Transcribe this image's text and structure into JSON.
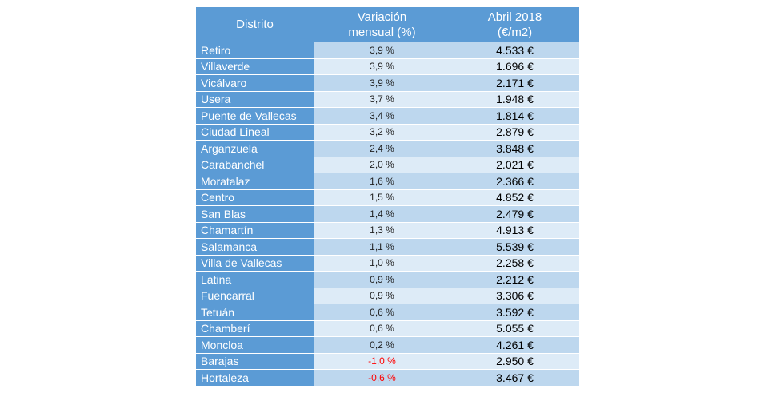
{
  "table": {
    "headers": {
      "district": "Distrito",
      "variation_line1": "Variación",
      "variation_line2": "mensual (%)",
      "price_line1": "Abril 2018",
      "price_line2": "(€/m2)"
    },
    "rows": [
      {
        "district": "Retiro",
        "variation": "3,9 %",
        "price": "4.533 €"
      },
      {
        "district": "Villaverde",
        "variation": "3,9 %",
        "price": "1.696 €"
      },
      {
        "district": "Vicálvaro",
        "variation": "3,9 %",
        "price": "2.171 €"
      },
      {
        "district": "Usera",
        "variation": "3,7 %",
        "price": "1.948 €"
      },
      {
        "district": "Puente de Vallecas",
        "variation": "3,4 %",
        "price": "1.814 €"
      },
      {
        "district": "Ciudad Lineal",
        "variation": "3,2 %",
        "price": "2.879 €"
      },
      {
        "district": "Arganzuela",
        "variation": "2,4 %",
        "price": "3.848 €"
      },
      {
        "district": "Carabanchel",
        "variation": "2,0 %",
        "price": "2.021 €"
      },
      {
        "district": "Moratalaz",
        "variation": "1,6 %",
        "price": "2.366 €"
      },
      {
        "district": "Centro",
        "variation": "1,5 %",
        "price": "4.852 €"
      },
      {
        "district": "San Blas",
        "variation": "1,4 %",
        "price": "2.479 €"
      },
      {
        "district": "Chamartín",
        "variation": "1,3 %",
        "price": "4.913 €"
      },
      {
        "district": "Salamanca",
        "variation": "1,1 %",
        "price": "5.539 €"
      },
      {
        "district": "Villa de Vallecas",
        "variation": "1,0 %",
        "price": "2.258 €"
      },
      {
        "district": "Latina",
        "variation": "0,9 %",
        "price": "2.212 €"
      },
      {
        "district": "Fuencarral",
        "variation": "0,9 %",
        "price": "3.306 €"
      },
      {
        "district": "Tetuán",
        "variation": "0,6 %",
        "price": "3.592 €"
      },
      {
        "district": "Chamberí",
        "variation": "0,6 %",
        "price": "5.055 €"
      },
      {
        "district": "Moncloa",
        "variation": "0,2 %",
        "price": "4.261 €"
      },
      {
        "district": "Barajas",
        "variation": "-1,0 %",
        "price": "2.950 €",
        "negative": true
      },
      {
        "district": "Hortaleza",
        "variation": "-0,6 %",
        "price": "3.467 €",
        "negative": true
      }
    ]
  },
  "colors": {
    "header_bg": "#5b9bd5",
    "row_dark": "#bdd7ee",
    "row_light": "#ddebf7",
    "negative": "#ff0000"
  }
}
